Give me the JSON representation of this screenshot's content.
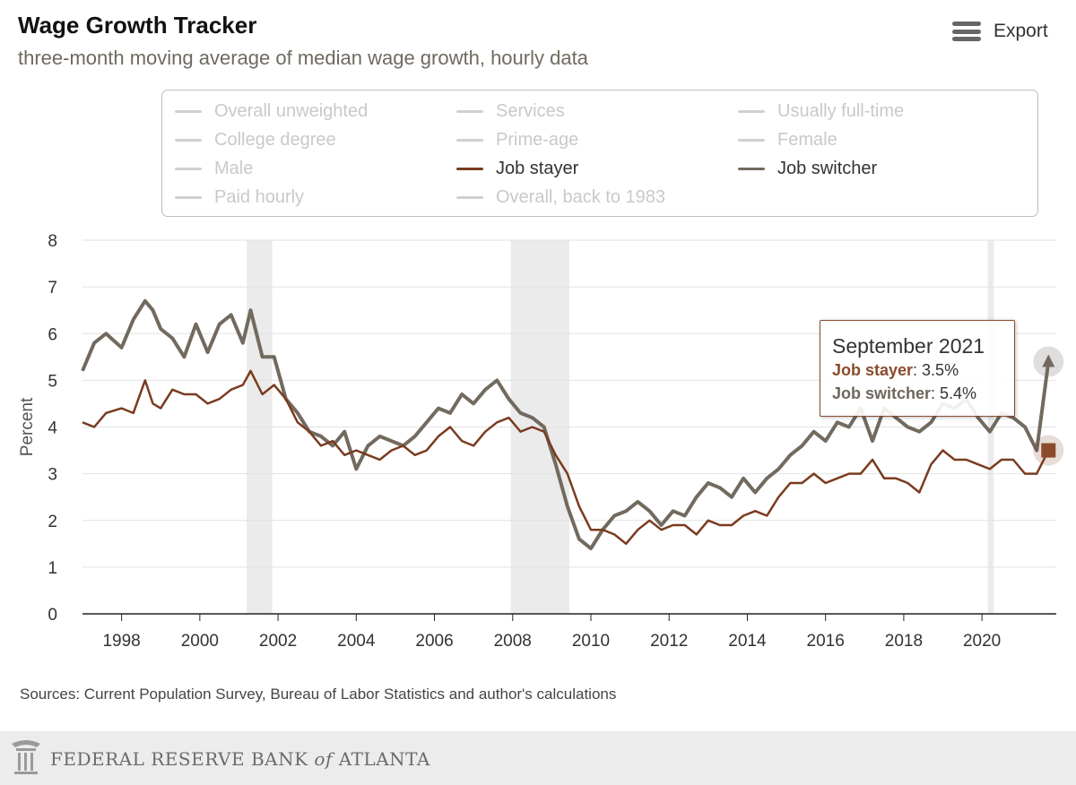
{
  "header": {
    "title": "Wage Growth Tracker",
    "subtitle": "three-month moving average of median wage growth, hourly data",
    "export_label": "Export",
    "menu_icon": "hamburger-menu-icon"
  },
  "legend": {
    "items": [
      {
        "label": "Overall unweighted",
        "active": false
      },
      {
        "label": "Services",
        "active": false
      },
      {
        "label": "Usually full-time",
        "active": false
      },
      {
        "label": "College degree",
        "active": false
      },
      {
        "label": "Prime-age",
        "active": false
      },
      {
        "label": "Female",
        "active": false
      },
      {
        "label": "Male",
        "active": false
      },
      {
        "label": "Job stayer",
        "active": true,
        "color": "#7a3b1f"
      },
      {
        "label": "Job switcher",
        "active": true,
        "color": "#726a5e"
      },
      {
        "label": "Paid hourly",
        "active": false
      },
      {
        "label": "Overall, back to 1983",
        "active": false
      }
    ]
  },
  "tooltip": {
    "date": "September 2021",
    "rows": [
      {
        "name": "Job stayer",
        "value": ": 3.5%",
        "color": "#8a4b2c"
      },
      {
        "name": "Job switcher",
        "value": ": 5.4%",
        "color": "#6e675c"
      }
    ]
  },
  "sources": "Sources: Current Population Survey, Bureau of Labor Statistics and author's calculations",
  "footer": {
    "org_text_1": "FEDERAL RESERVE BANK ",
    "org_text_of": "of",
    "org_text_2": " ATLANTA",
    "logo_icon": "fed-eagle-logo-icon"
  },
  "chart_data": {
    "type": "line",
    "ylabel": "Percent",
    "xlabel": "",
    "ylim": [
      0,
      8
    ],
    "xlim": [
      1997.0,
      2021.9
    ],
    "yticks": [
      "0",
      "1",
      "2",
      "3",
      "4",
      "5",
      "6",
      "7",
      "8"
    ],
    "xticks": [
      "1998",
      "2000",
      "2002",
      "2004",
      "2006",
      "2008",
      "2010",
      "2012",
      "2014",
      "2016",
      "2018",
      "2020"
    ],
    "grid": true,
    "recessions": [
      [
        2001.2,
        2001.85
      ],
      [
        2007.95,
        2009.45
      ],
      [
        2020.15,
        2020.3
      ]
    ],
    "series": [
      {
        "name": "Job stayer",
        "color": "#7a3b1f",
        "x": [
          1997.0,
          1997.3,
          1997.6,
          1998.0,
          1998.3,
          1998.6,
          1998.8,
          1999.0,
          1999.3,
          1999.6,
          1999.9,
          2000.2,
          2000.5,
          2000.8,
          2001.1,
          2001.3,
          2001.6,
          2001.9,
          2002.2,
          2002.5,
          2002.8,
          2003.1,
          2003.4,
          2003.7,
          2004.0,
          2004.3,
          2004.6,
          2004.9,
          2005.2,
          2005.5,
          2005.8,
          2006.1,
          2006.4,
          2006.7,
          2007.0,
          2007.3,
          2007.6,
          2007.9,
          2008.2,
          2008.5,
          2008.8,
          2009.1,
          2009.4,
          2009.7,
          2010.0,
          2010.3,
          2010.6,
          2010.9,
          2011.2,
          2011.5,
          2011.8,
          2012.1,
          2012.4,
          2012.7,
          2013.0,
          2013.3,
          2013.6,
          2013.9,
          2014.2,
          2014.5,
          2014.8,
          2015.1,
          2015.4,
          2015.7,
          2016.0,
          2016.3,
          2016.6,
          2016.9,
          2017.2,
          2017.5,
          2017.8,
          2018.1,
          2018.4,
          2018.7,
          2019.0,
          2019.3,
          2019.6,
          2019.9,
          2020.2,
          2020.5,
          2020.8,
          2021.1,
          2021.4,
          2021.7
        ],
        "values": [
          4.1,
          4.0,
          4.3,
          4.4,
          4.3,
          5.0,
          4.5,
          4.4,
          4.8,
          4.7,
          4.7,
          4.5,
          4.6,
          4.8,
          4.9,
          5.2,
          4.7,
          4.9,
          4.6,
          4.1,
          3.9,
          3.6,
          3.7,
          3.4,
          3.5,
          3.4,
          3.3,
          3.5,
          3.6,
          3.4,
          3.5,
          3.8,
          4.0,
          3.7,
          3.6,
          3.9,
          4.1,
          4.2,
          3.9,
          4.0,
          3.9,
          3.4,
          3.0,
          2.3,
          1.8,
          1.8,
          1.7,
          1.5,
          1.8,
          2.0,
          1.8,
          1.9,
          1.9,
          1.7,
          2.0,
          1.9,
          1.9,
          2.1,
          2.2,
          2.1,
          2.5,
          2.8,
          2.8,
          3.0,
          2.8,
          2.9,
          3.0,
          3.0,
          3.3,
          2.9,
          2.9,
          2.8,
          2.6,
          3.2,
          3.5,
          3.3,
          3.3,
          3.2,
          3.1,
          3.3,
          3.3,
          3.0,
          3.0,
          3.5
        ]
      },
      {
        "name": "Job switcher",
        "color": "#726a5e",
        "x": [
          1997.0,
          1997.3,
          1997.6,
          1998.0,
          1998.3,
          1998.6,
          1998.8,
          1999.0,
          1999.3,
          1999.6,
          1999.9,
          2000.2,
          2000.5,
          2000.8,
          2001.1,
          2001.3,
          2001.6,
          2001.9,
          2002.2,
          2002.5,
          2002.8,
          2003.1,
          2003.4,
          2003.7,
          2004.0,
          2004.3,
          2004.6,
          2004.9,
          2005.2,
          2005.5,
          2005.8,
          2006.1,
          2006.4,
          2006.7,
          2007.0,
          2007.3,
          2007.6,
          2007.9,
          2008.2,
          2008.5,
          2008.8,
          2009.1,
          2009.4,
          2009.7,
          2010.0,
          2010.3,
          2010.6,
          2010.9,
          2011.2,
          2011.5,
          2011.8,
          2012.1,
          2012.4,
          2012.7,
          2013.0,
          2013.3,
          2013.6,
          2013.9,
          2014.2,
          2014.5,
          2014.8,
          2015.1,
          2015.4,
          2015.7,
          2016.0,
          2016.3,
          2016.6,
          2016.9,
          2017.2,
          2017.5,
          2017.8,
          2018.1,
          2018.4,
          2018.7,
          2019.0,
          2019.3,
          2019.6,
          2019.9,
          2020.2,
          2020.5,
          2020.8,
          2021.1,
          2021.4,
          2021.7
        ],
        "values": [
          5.2,
          5.8,
          6.0,
          5.7,
          6.3,
          6.7,
          6.5,
          6.1,
          5.9,
          5.5,
          6.2,
          5.6,
          6.2,
          6.4,
          5.8,
          6.5,
          5.5,
          5.5,
          4.6,
          4.3,
          3.9,
          3.8,
          3.6,
          3.9,
          3.1,
          3.6,
          3.8,
          3.7,
          3.6,
          3.8,
          4.1,
          4.4,
          4.3,
          4.7,
          4.5,
          4.8,
          5.0,
          4.6,
          4.3,
          4.2,
          4.0,
          3.2,
          2.3,
          1.6,
          1.4,
          1.8,
          2.1,
          2.2,
          2.4,
          2.2,
          1.9,
          2.2,
          2.1,
          2.5,
          2.8,
          2.7,
          2.5,
          2.9,
          2.6,
          2.9,
          3.1,
          3.4,
          3.6,
          3.9,
          3.7,
          4.1,
          4.0,
          4.4,
          3.7,
          4.4,
          4.2,
          4.0,
          3.9,
          4.1,
          4.5,
          4.4,
          4.6,
          4.2,
          3.9,
          4.3,
          4.2,
          4.0,
          3.5,
          5.4
        ]
      }
    ]
  }
}
